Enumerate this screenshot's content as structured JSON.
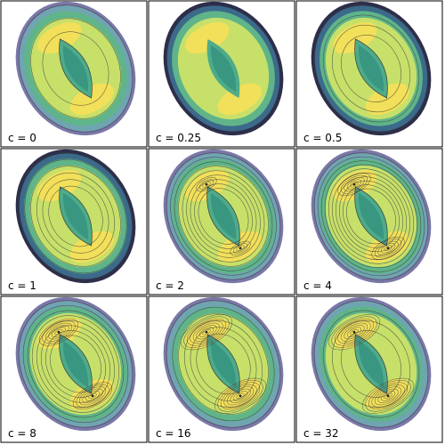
{
  "figure": {
    "panels": [
      {
        "label": "c = 0",
        "c": 0,
        "contours": 3,
        "hot_spots": false,
        "dark_rim": false
      },
      {
        "label": "c = 0.25",
        "c": 0.25,
        "contours": 0,
        "hot_spots": false,
        "dark_rim": true
      },
      {
        "label": "c = 0.5",
        "c": 0.5,
        "contours": 4,
        "hot_spots": false,
        "dark_rim": true
      },
      {
        "label": "c = 1",
        "c": 1,
        "contours": 6,
        "hot_spots": false,
        "dark_rim": true
      },
      {
        "label": "c = 2",
        "c": 2,
        "contours": 9,
        "hot_spots": true,
        "dark_rim": false
      },
      {
        "label": "c = 4",
        "c": 4,
        "contours": 10,
        "hot_spots": true,
        "dark_rim": false
      },
      {
        "label": "c = 8",
        "c": 8,
        "contours": 8,
        "hot_spots": true,
        "dark_rim": false
      },
      {
        "label": "c = 16",
        "c": 16,
        "contours": 6,
        "hot_spots": true,
        "dark_rim": false
      },
      {
        "label": "c = 32",
        "c": 32,
        "contours": 4,
        "hot_spots": true,
        "dark_rim": false
      }
    ],
    "colors": {
      "rim_dark": "#2d2e4a",
      "rim_purple": "#7a78a8",
      "teal": "#3fa58e",
      "mid_green": "#8ccf6e",
      "yellow_green": "#c7e06a",
      "yellow": "#f2e05a",
      "contour": "#3a3a3a",
      "border": "#000000"
    }
  }
}
